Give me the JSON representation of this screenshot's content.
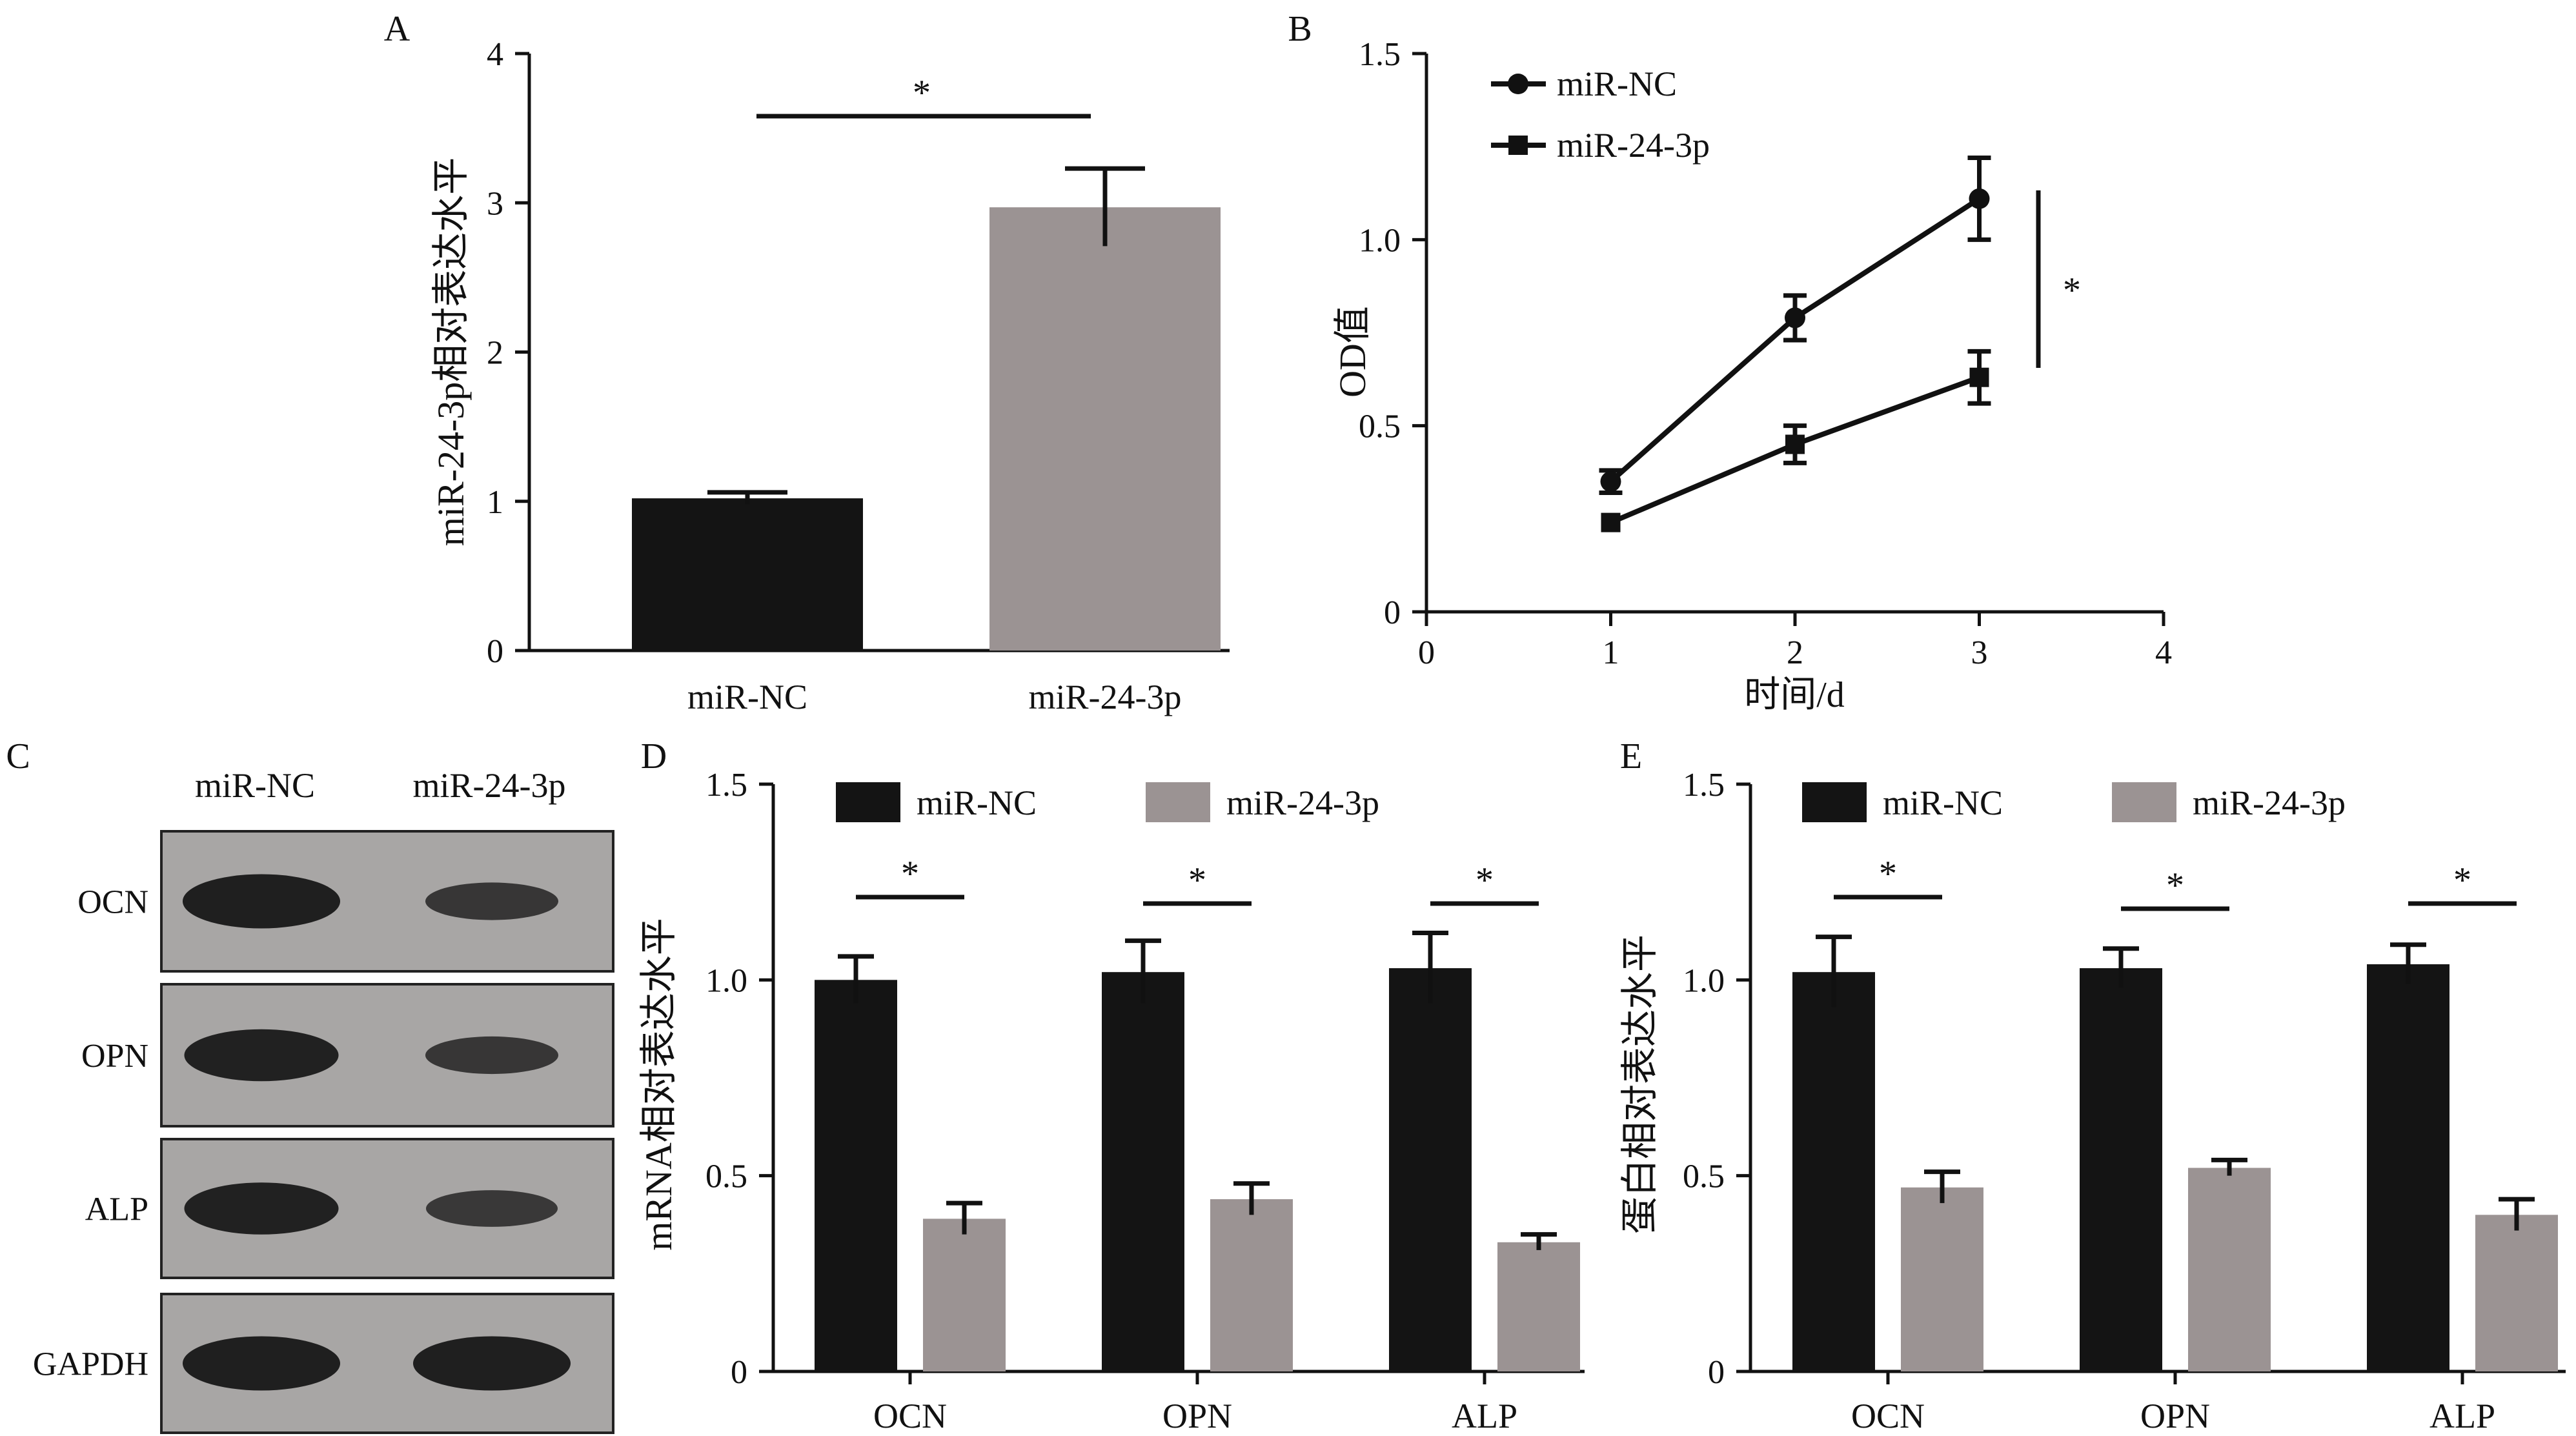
{
  "colors": {
    "nc": "#141414",
    "p": "#9b9393",
    "axis": "#111111",
    "blot_bg": "#a8a6a5",
    "blot_band": "#171717"
  },
  "panels": {
    "A": {
      "letter": "A",
      "ylabel": "miR-24-3p相对表达水平",
      "sig": "*"
    },
    "B": {
      "letter": "B",
      "xlabel": "时间/d",
      "ylabel": "OD值",
      "sig": "*"
    },
    "C": {
      "letter": "C",
      "lanes": [
        "miR-NC",
        "miR-24-3p"
      ],
      "rows": [
        "OCN",
        "OPN",
        "ALP",
        "GAPDH"
      ],
      "band_intensity": [
        [
          1.0,
          0.62
        ],
        [
          0.95,
          0.62
        ],
        [
          0.95,
          0.6
        ],
        [
          1.0,
          1.0
        ]
      ]
    },
    "D": {
      "letter": "D",
      "ylabel": "mRNA相对表达水平",
      "sig": "*"
    },
    "E": {
      "letter": "E",
      "ylabel": "蛋白相对表达水平",
      "sig": "*"
    }
  },
  "chart_data": [
    {
      "panel": "A",
      "type": "bar",
      "categories": [
        "miR-NC",
        "miR-24-3p"
      ],
      "values": [
        1.02,
        2.97
      ],
      "errors": [
        0.04,
        0.26
      ],
      "ylim": [
        0,
        4
      ],
      "yticks": [
        "0",
        "1",
        "2",
        "3",
        "4"
      ]
    },
    {
      "panel": "B",
      "type": "line",
      "x": [
        1,
        2,
        3
      ],
      "series": [
        {
          "name": "miR-NC",
          "marker": "circle",
          "values": [
            0.35,
            0.79,
            1.11
          ],
          "errors": [
            0.03,
            0.06,
            0.11
          ]
        },
        {
          "name": "miR-24-3p",
          "marker": "square",
          "values": [
            0.24,
            0.45,
            0.63
          ],
          "errors": [
            0.015,
            0.05,
            0.07
          ]
        }
      ],
      "xlim": [
        0,
        4
      ],
      "xticks": [
        "0",
        "1",
        "2",
        "3",
        "4"
      ],
      "ylim": [
        0,
        1.5
      ],
      "yticks": [
        "0",
        "0.5",
        "1.0",
        "1.5"
      ]
    },
    {
      "panel": "D",
      "type": "bar",
      "categories": [
        "OCN",
        "OPN",
        "ALP"
      ],
      "series": [
        {
          "name": "miR-NC",
          "values": [
            1.0,
            1.02,
            1.03
          ],
          "errors": [
            0.06,
            0.08,
            0.09
          ]
        },
        {
          "name": "miR-24-3p",
          "values": [
            0.39,
            0.44,
            0.33
          ],
          "errors": [
            0.04,
            0.04,
            0.02
          ]
        }
      ],
      "ylim": [
        0,
        1.5
      ],
      "yticks": [
        "0",
        "0.5",
        "1.0",
        "1.5"
      ]
    },
    {
      "panel": "E",
      "type": "bar",
      "categories": [
        "OCN",
        "OPN",
        "ALP"
      ],
      "series": [
        {
          "name": "miR-NC",
          "values": [
            1.02,
            1.03,
            1.04
          ],
          "errors": [
            0.09,
            0.05,
            0.05
          ]
        },
        {
          "name": "miR-24-3p",
          "values": [
            0.47,
            0.52,
            0.4
          ],
          "errors": [
            0.04,
            0.02,
            0.04
          ]
        }
      ],
      "ylim": [
        0,
        1.5
      ],
      "yticks": [
        "0",
        "0.5",
        "1.0",
        "1.5"
      ]
    }
  ]
}
